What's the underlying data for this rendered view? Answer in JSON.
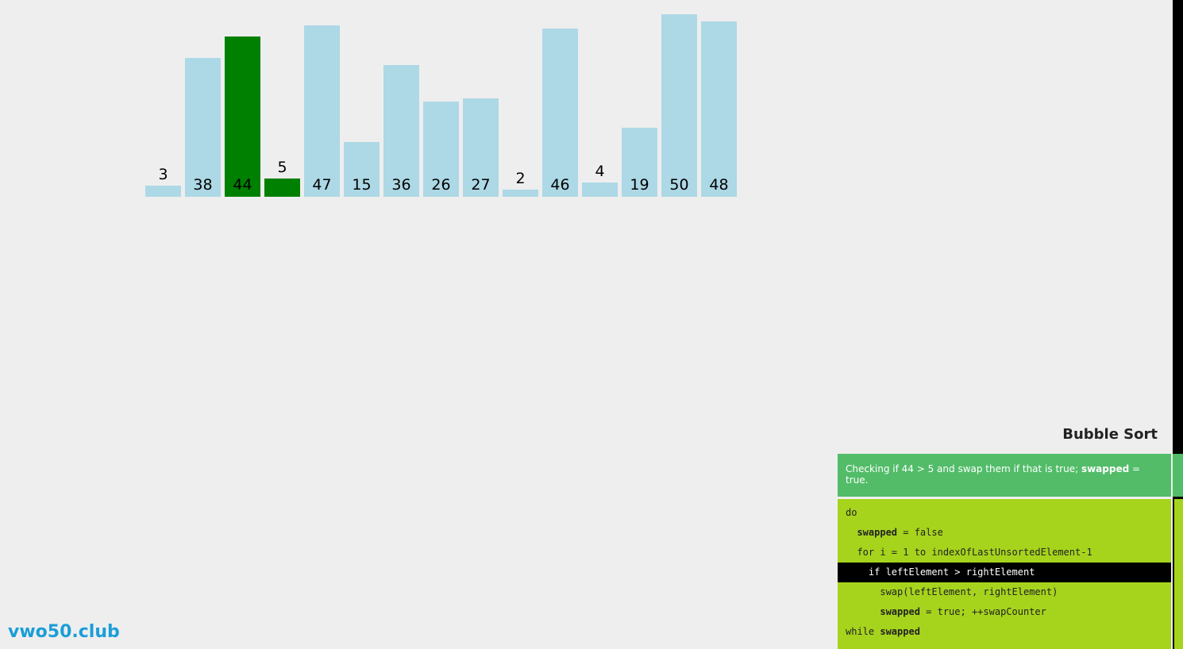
{
  "visualization": {
    "values": [
      3,
      38,
      44,
      5,
      47,
      15,
      36,
      26,
      27,
      2,
      46,
      4,
      19,
      50,
      48
    ],
    "highlighted_indices": [
      2,
      3
    ],
    "max_value": 50,
    "colors": {
      "default": "#add8e6",
      "compare": "#008000"
    }
  },
  "panel": {
    "title": "Bubble Sort",
    "status": {
      "prefix": "Checking if 44 > 5 and swap them if that is true; ",
      "bold": "swapped",
      "suffix": " = true."
    },
    "code_lines": [
      {
        "indent": "",
        "parts": [
          {
            "text": "do",
            "bold": false
          }
        ]
      },
      {
        "indent": "  ",
        "parts": [
          {
            "text": "swapped",
            "bold": true
          },
          {
            "text": " = false",
            "bold": false
          }
        ]
      },
      {
        "indent": "  ",
        "parts": [
          {
            "text": "for i = 1 to indexOfLastUnsortedElement-1",
            "bold": false
          }
        ]
      },
      {
        "indent": "    ",
        "parts": [
          {
            "text": "if leftElement > rightElement",
            "bold": false
          }
        ],
        "active": true
      },
      {
        "indent": "      ",
        "parts": [
          {
            "text": "swap(leftElement, rightElement)",
            "bold": false
          }
        ]
      },
      {
        "indent": "      ",
        "parts": [
          {
            "text": "swapped",
            "bold": true
          },
          {
            "text": " = true; ++swapCounter",
            "bold": false
          }
        ]
      },
      {
        "indent": "",
        "parts": [
          {
            "text": "while ",
            "bold": false
          },
          {
            "text": "swapped",
            "bold": true
          }
        ]
      }
    ],
    "colors": {
      "status_bg": "#52bc69",
      "code_bg": "#a6d41d",
      "active_line_bg": "#000000"
    }
  },
  "logo": {
    "text": "vwo50.club",
    "color": "#1a9ed8"
  }
}
